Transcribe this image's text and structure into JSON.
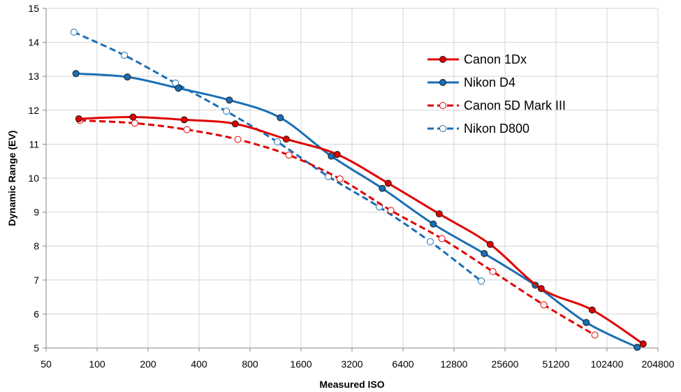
{
  "chart_data": {
    "type": "line",
    "title": "",
    "xlabel": "Measured ISO",
    "ylabel": "Dynamic Range (EV)",
    "x_scale": "log2",
    "x_ticks": [
      50,
      100,
      200,
      400,
      800,
      1600,
      3200,
      6400,
      12800,
      25600,
      51200,
      102400,
      204800
    ],
    "xlim": [
      50,
      204800
    ],
    "ylim": [
      5,
      15
    ],
    "y_ticks": [
      5,
      6,
      7,
      8,
      9,
      10,
      11,
      12,
      13,
      14,
      15
    ],
    "grid": true,
    "legend_position": "top-right",
    "series": [
      {
        "name": "Canon 1Dx",
        "color": "#e00000",
        "line_style": "solid",
        "marker": "filled",
        "x": [
          78,
          163,
          327,
          654,
          1309,
          2617,
          5234,
          10469,
          20938,
          41877,
          83754,
          167507
        ],
        "y": [
          11.75,
          11.8,
          11.72,
          11.6,
          11.15,
          10.7,
          9.85,
          8.95,
          8.05,
          6.75,
          6.12,
          5.12
        ]
      },
      {
        "name": "Nikon D4",
        "color": "#1a6eb4",
        "line_style": "solid",
        "marker": "filled",
        "x": [
          75,
          151,
          302,
          604,
          1207,
          2414,
          4828,
          9657,
          19314,
          38628,
          77255,
          154511
        ],
        "y": [
          13.08,
          12.98,
          12.65,
          12.3,
          11.78,
          10.65,
          9.7,
          8.65,
          7.78,
          6.85,
          5.75,
          5.02
        ]
      },
      {
        "name": "Canon 5D Mark III",
        "color": "#e00000",
        "line_style": "dashed",
        "marker": "open",
        "x": [
          79,
          167,
          339,
          678,
          1357,
          2714,
          5428,
          10855,
          21711,
          43422,
          86844
        ],
        "y": [
          11.7,
          11.62,
          11.43,
          11.14,
          10.68,
          9.98,
          9.05,
          8.22,
          7.25,
          6.27,
          5.38
        ]
      },
      {
        "name": "Nikon D800",
        "color": "#1a6eb4",
        "line_style": "dashed",
        "marker": "open",
        "x": [
          73,
          145,
          290,
          580,
          1160,
          2319,
          4638,
          9276,
          18552
        ],
        "y": [
          14.3,
          13.62,
          12.8,
          11.97,
          11.07,
          10.05,
          9.15,
          8.13,
          6.97
        ]
      }
    ]
  }
}
